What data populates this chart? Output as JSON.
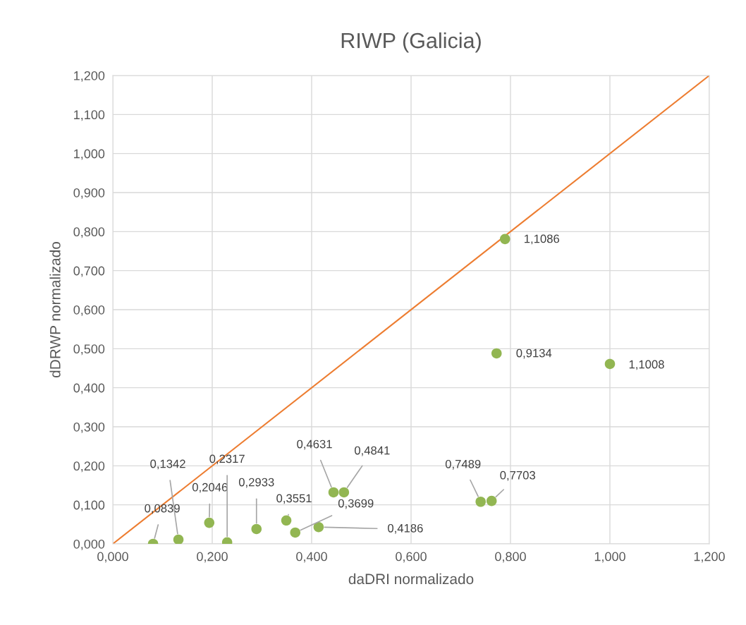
{
  "chart_data": {
    "type": "scatter",
    "title": "RIWP (Galicia)",
    "xlabel": "daDRI normalizado",
    "ylabel": "dDRWP normalizado",
    "xlim": [
      0,
      1.2
    ],
    "ylim": [
      0,
      1.2
    ],
    "xticks": [
      {
        "value": 0,
        "label": "0,000"
      },
      {
        "value": 0.2,
        "label": "0,200"
      },
      {
        "value": 0.4,
        "label": "0,400"
      },
      {
        "value": 0.6,
        "label": "0,600"
      },
      {
        "value": 0.8,
        "label": "0,800"
      },
      {
        "value": 1.0,
        "label": "1,000"
      },
      {
        "value": 1.2,
        "label": "1,200"
      }
    ],
    "yticks": [
      {
        "value": 0,
        "label": "0,000"
      },
      {
        "value": 0.1,
        "label": "0,100"
      },
      {
        "value": 0.2,
        "label": "0,200"
      },
      {
        "value": 0.3,
        "label": "0,300"
      },
      {
        "value": 0.4,
        "label": "0,400"
      },
      {
        "value": 0.5,
        "label": "0,500"
      },
      {
        "value": 0.6,
        "label": "0,600"
      },
      {
        "value": 0.7,
        "label": "0,700"
      },
      {
        "value": 0.8,
        "label": "0,800"
      },
      {
        "value": 0.9,
        "label": "0,900"
      },
      {
        "value": 1.0,
        "label": "1,000"
      },
      {
        "value": 1.1,
        "label": "1,100"
      },
      {
        "value": 1.2,
        "label": "1,200"
      }
    ],
    "grid": true,
    "series": [
      {
        "color": "#92b652",
        "marker": "circle",
        "x": [
          0.081,
          0.132,
          0.194,
          0.23,
          0.289,
          0.349,
          0.367,
          0.414,
          0.444,
          0.465,
          0.74,
          0.762,
          0.772,
          0.789,
          1.0
        ],
        "values": [
          0.0,
          0.011,
          0.054,
          0.004,
          0.038,
          0.06,
          0.029,
          0.043,
          0.132,
          0.132,
          0.108,
          0.11,
          0.488,
          0.781,
          0.461
        ]
      },
      {
        "type": "line",
        "color": "#ed7d31",
        "x": [
          0,
          1.2
        ],
        "values": [
          0,
          1.2
        ]
      }
    ],
    "annotations": [
      {
        "text": "0,0839",
        "x": 0.081,
        "y": 0.0
      },
      {
        "text": "0,1342",
        "x": 0.132,
        "y": 0.011
      },
      {
        "text": "0,2046",
        "x": 0.194,
        "y": 0.054
      },
      {
        "text": "0,2317",
        "x": 0.23,
        "y": 0.004
      },
      {
        "text": "0,2933",
        "x": 0.289,
        "y": 0.038
      },
      {
        "text": "0,3551",
        "x": 0.349,
        "y": 0.06
      },
      {
        "text": "0,3699",
        "x": 0.367,
        "y": 0.029
      },
      {
        "text": "0,4186",
        "x": 0.414,
        "y": 0.043
      },
      {
        "text": "0,4631",
        "x": 0.444,
        "y": 0.132
      },
      {
        "text": "0,4841",
        "x": 0.465,
        "y": 0.132
      },
      {
        "text": "0,7489",
        "x": 0.74,
        "y": 0.108
      },
      {
        "text": "0,7703",
        "x": 0.762,
        "y": 0.11
      },
      {
        "text": "0,9134",
        "x": 0.772,
        "y": 0.488
      },
      {
        "text": "1,1086",
        "x": 0.789,
        "y": 0.781
      },
      {
        "text": "1,1008",
        "x": 1.0,
        "y": 0.461
      }
    ]
  }
}
